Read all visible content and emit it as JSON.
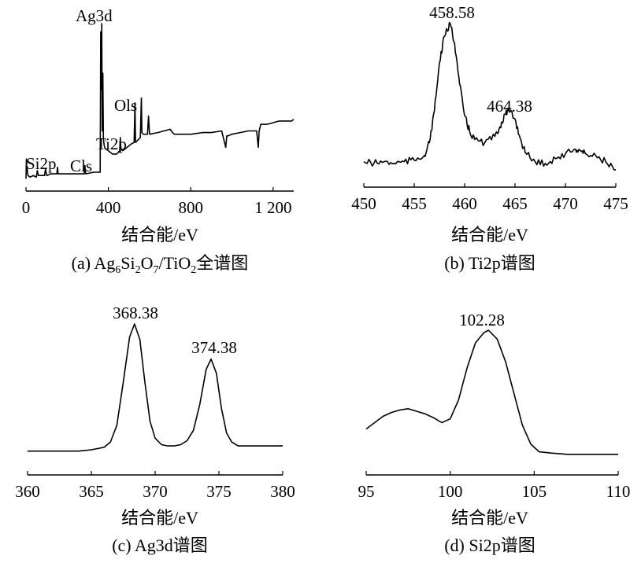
{
  "chart_data": [
    {
      "id": "a",
      "type": "line",
      "xlabel": "结合能/eV",
      "caption": "(a) Ag6Si2O7/TiO2全谱图",
      "caption_parts": {
        "prefix": "(a) Ag",
        "sub1": "6",
        "mid1": "Si",
        "sub2": "2",
        "mid2": "O",
        "sub3": "7",
        "mid3": "/TiO",
        "sub4": "2",
        "suffix": "全谱图"
      },
      "xlim": [
        0,
        1300
      ],
      "ylim": [
        0,
        100
      ],
      "ticks": [
        0,
        400,
        800,
        1200
      ],
      "tick_labels": [
        "0",
        "400",
        "800",
        "1 200"
      ],
      "series": [
        {
          "x": [
            0,
            2,
            4,
            6,
            8,
            10,
            20,
            35,
            50,
            55,
            60,
            70,
            90,
            95,
            100,
            120,
            150,
            153,
            156,
            200,
            270,
            283,
            286,
            290,
            330,
            345,
            350,
            360,
            363,
            366,
            368,
            370,
            373,
            376,
            380,
            385,
            390,
            400,
            420,
            440,
            455,
            458,
            461,
            470,
            490,
            500,
            510,
            525,
            529,
            532,
            540,
            555,
            560,
            563,
            570,
            590,
            595,
            600,
            640,
            700,
            712,
            720,
            760,
            800,
            860,
            900,
            950,
            970,
            975,
            980,
            1000,
            1040,
            1080,
            1120,
            1128,
            1132,
            1140,
            1170,
            1200,
            1230,
            1260,
            1290,
            1300
          ],
          "y": [
            6,
            18,
            13,
            12,
            9,
            8,
            7,
            8,
            7,
            11,
            8,
            8,
            8,
            12,
            8,
            9,
            9,
            13,
            9,
            9,
            9,
            9,
            14,
            9,
            10,
            10,
            10,
            10,
            95,
            60,
            100,
            35,
            70,
            30,
            26,
            24,
            24,
            23,
            21,
            21,
            23,
            31,
            24,
            23,
            25,
            26,
            27,
            28,
            52,
            28,
            29,
            31,
            55,
            34,
            33,
            33,
            44,
            33,
            34,
            36,
            34,
            33,
            33,
            33,
            34,
            34,
            35,
            25,
            32,
            32,
            33,
            34,
            35,
            35,
            25,
            35,
            39,
            39,
            40,
            41,
            41,
            41,
            42
          ]
        }
      ],
      "annotations": [
        "Ag3d",
        "Ols",
        "Ti2p",
        "Si2p",
        "Cls"
      ]
    },
    {
      "id": "b",
      "type": "line",
      "xlabel": "结合能/eV",
      "caption": "(b) Ti2p谱图",
      "xlim": [
        450,
        475
      ],
      "ylim": [
        0,
        100
      ],
      "ticks": [
        450,
        455,
        460,
        465,
        470,
        475
      ],
      "series": [
        {
          "x": [
            450,
            451,
            452,
            453,
            454,
            455,
            456,
            456.5,
            457,
            457.5,
            458,
            458.58,
            459,
            459.5,
            460,
            460.5,
            461,
            462,
            463,
            463.5,
            464,
            464.38,
            465,
            465.5,
            466,
            467,
            468,
            469,
            470,
            471,
            471.5,
            472,
            473,
            474,
            475
          ],
          "y": [
            13,
            12,
            13,
            12,
            13,
            14,
            17,
            25,
            45,
            75,
            92,
            100,
            88,
            62,
            42,
            32,
            27,
            25,
            29,
            35,
            43,
            45,
            40,
            28,
            19,
            13,
            12,
            15,
            18,
            21,
            20,
            18,
            17,
            13,
            8
          ]
        }
      ],
      "annotations": [
        {
          "text": "458.58",
          "x": 458.58
        },
        {
          "text": "464.38",
          "x": 464.38
        }
      ]
    },
    {
      "id": "c",
      "type": "line",
      "xlabel": "结合能/eV",
      "caption": "(c) Ag3d谱图",
      "xlim": [
        360,
        380
      ],
      "ylim": [
        0,
        100
      ],
      "ticks": [
        360,
        365,
        370,
        375,
        380
      ],
      "series": [
        {
          "x": [
            360,
            362,
            364,
            365,
            366,
            366.5,
            367,
            367.5,
            368,
            368.38,
            368.8,
            369.2,
            369.6,
            370,
            370.5,
            371,
            371.5,
            372,
            372.5,
            373,
            373.5,
            374,
            374.38,
            374.8,
            375.2,
            375.6,
            376,
            376.5,
            377,
            378,
            379,
            380
          ],
          "y": [
            2,
            2,
            2,
            3,
            5,
            9,
            22,
            55,
            90,
            100,
            88,
            55,
            25,
            12,
            7,
            6,
            6,
            7,
            10,
            18,
            38,
            65,
            73,
            62,
            35,
            16,
            9,
            6,
            6,
            6,
            6,
            6
          ]
        }
      ],
      "annotations": [
        {
          "text": "368.38",
          "x": 368.38
        },
        {
          "text": "374.38",
          "x": 374.38
        }
      ]
    },
    {
      "id": "d",
      "type": "line",
      "xlabel": "结合能/eV",
      "caption": "(d) Si2p谱图",
      "xlim": [
        95,
        110
      ],
      "ylim": [
        0,
        100
      ],
      "ticks": [
        95,
        100,
        105,
        110
      ],
      "series": [
        {
          "x": [
            95,
            95.5,
            96,
            96.5,
            97,
            97.5,
            98,
            98.5,
            99,
            99.5,
            100,
            100.5,
            101,
            101.5,
            102,
            102.28,
            102.8,
            103.3,
            103.8,
            104.3,
            104.8,
            105.3,
            106,
            107,
            108,
            109,
            110
          ],
          "y": [
            22,
            27,
            32,
            35,
            37,
            38,
            36,
            34,
            31,
            27,
            30,
            45,
            70,
            90,
            98,
            100,
            93,
            75,
            50,
            25,
            10,
            4,
            3,
            2,
            2,
            2,
            2
          ]
        }
      ],
      "annotations": [
        {
          "text": "102.28",
          "x": 102.28
        }
      ]
    }
  ]
}
